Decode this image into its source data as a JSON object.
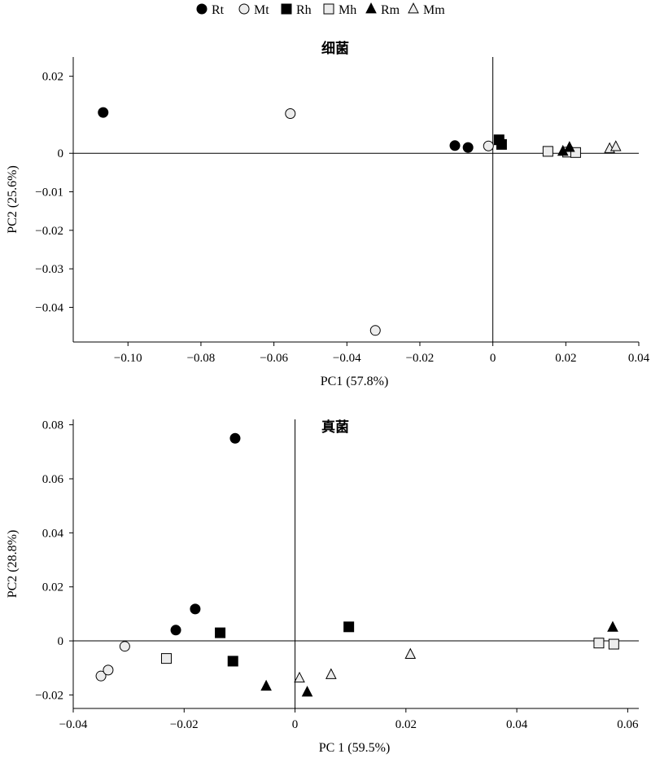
{
  "legend": {
    "entries": [
      {
        "label": "Rt",
        "marker": "circle-filled"
      },
      {
        "label": "Mt",
        "marker": "circle-open"
      },
      {
        "label": "Rh",
        "marker": "square-filled"
      },
      {
        "label": "Mh",
        "marker": "square-open"
      },
      {
        "label": "Rm",
        "marker": "triangle-filled"
      },
      {
        "label": "Mm",
        "marker": "triangle-open"
      }
    ]
  },
  "colors": {
    "filled": "#000000",
    "open_fill": "#ececec",
    "stroke": "#000000"
  },
  "chart_data": [
    {
      "type": "scatter",
      "title": "细菌",
      "xlabel": "PC1 (57.8%)",
      "ylabel": "PC2 (25.6%)",
      "xlim": [
        -0.115,
        0.04
      ],
      "ylim": [
        -0.049,
        0.025
      ],
      "xticks": [
        {
          "v": -0.1,
          "label": "−0.10"
        },
        {
          "v": -0.08,
          "label": "−0.08"
        },
        {
          "v": -0.06,
          "label": "−0.06"
        },
        {
          "v": -0.04,
          "label": "−0.04"
        },
        {
          "v": -0.02,
          "label": "−0.02"
        },
        {
          "v": 0,
          "label": "0"
        },
        {
          "v": 0.02,
          "label": "0.02"
        },
        {
          "v": 0.04,
          "label": "0.04"
        }
      ],
      "yticks": [
        {
          "v": 0.02,
          "label": "0.02"
        },
        {
          "v": 0,
          "label": "0"
        },
        {
          "v": -0.01,
          "label": "−0.01"
        },
        {
          "v": -0.02,
          "label": "−0.02"
        },
        {
          "v": -0.03,
          "label": "−0.03"
        },
        {
          "v": -0.04,
          "label": "−0.04"
        }
      ],
      "zero_lines": true,
      "series": [
        {
          "name": "Rt",
          "marker": "circle-filled",
          "points": [
            [
              -0.1068,
              0.0106
            ],
            [
              -0.0104,
              0.002
            ],
            [
              -0.0068,
              0.0015
            ]
          ]
        },
        {
          "name": "Mt",
          "marker": "circle-open",
          "points": [
            [
              -0.0555,
              0.0103
            ],
            [
              -0.0322,
              -0.046
            ],
            [
              -0.0012,
              0.0019
            ]
          ]
        },
        {
          "name": "Rh",
          "marker": "square-filled",
          "points": [
            [
              0.0017,
              0.0035
            ],
            [
              0.0024,
              0.0023
            ]
          ]
        },
        {
          "name": "Mh",
          "marker": "square-open",
          "points": [
            [
              0.0151,
              0.0005
            ],
            [
              0.0205,
              0.0003
            ],
            [
              0.0227,
              0.0002
            ]
          ]
        },
        {
          "name": "Rm",
          "marker": "triangle-filled",
          "points": [
            [
              0.0192,
              0.0005
            ],
            [
              0.021,
              0.0015
            ]
          ]
        },
        {
          "name": "Mm",
          "marker": "triangle-open",
          "points": [
            [
              0.032,
              0.0012
            ],
            [
              0.0337,
              0.0017
            ]
          ]
        }
      ]
    },
    {
      "type": "scatter",
      "title": "真菌",
      "xlabel": "PC 1 (59.5%)",
      "ylabel": "PC2 (28.8%)",
      "xlim": [
        -0.04,
        0.062
      ],
      "ylim": [
        -0.025,
        0.082
      ],
      "xticks": [
        {
          "v": -0.04,
          "label": "−0.04"
        },
        {
          "v": -0.02,
          "label": "−0.02"
        },
        {
          "v": 0,
          "label": "0"
        },
        {
          "v": 0.02,
          "label": "0.02"
        },
        {
          "v": 0.04,
          "label": "0.04"
        },
        {
          "v": 0.06,
          "label": "0.06"
        }
      ],
      "yticks": [
        {
          "v": 0.08,
          "label": "0.08"
        },
        {
          "v": 0.06,
          "label": "0.06"
        },
        {
          "v": 0.04,
          "label": "0.04"
        },
        {
          "v": 0.02,
          "label": "0.02"
        },
        {
          "v": 0,
          "label": "0"
        },
        {
          "v": -0.02,
          "label": "−0.02"
        }
      ],
      "zero_lines": true,
      "series": [
        {
          "name": "Rt",
          "marker": "circle-filled",
          "points": [
            [
              -0.0108,
              0.075
            ],
            [
              -0.018,
              0.0118
            ],
            [
              -0.0215,
              0.004
            ]
          ]
        },
        {
          "name": "Mt",
          "marker": "circle-open",
          "points": [
            [
              -0.035,
              -0.013
            ],
            [
              -0.0337,
              -0.0108
            ],
            [
              -0.0307,
              -0.002
            ]
          ]
        },
        {
          "name": "Rh",
          "marker": "square-filled",
          "points": [
            [
              -0.0135,
              0.003
            ],
            [
              -0.0112,
              -0.0075
            ],
            [
              0.0097,
              0.0052
            ]
          ]
        },
        {
          "name": "Mh",
          "marker": "square-open",
          "points": [
            [
              -0.0232,
              -0.0065
            ],
            [
              0.0548,
              -0.0008
            ],
            [
              0.0575,
              -0.0012
            ]
          ]
        },
        {
          "name": "Rm",
          "marker": "triangle-filled",
          "points": [
            [
              -0.0052,
              -0.0168
            ],
            [
              0.0022,
              -0.019
            ],
            [
              0.0573,
              0.005
            ]
          ]
        },
        {
          "name": "Mm",
          "marker": "triangle-open",
          "points": [
            [
              0.0008,
              -0.0138
            ],
            [
              0.0065,
              -0.0125
            ],
            [
              0.0208,
              -0.005
            ]
          ]
        }
      ]
    }
  ]
}
